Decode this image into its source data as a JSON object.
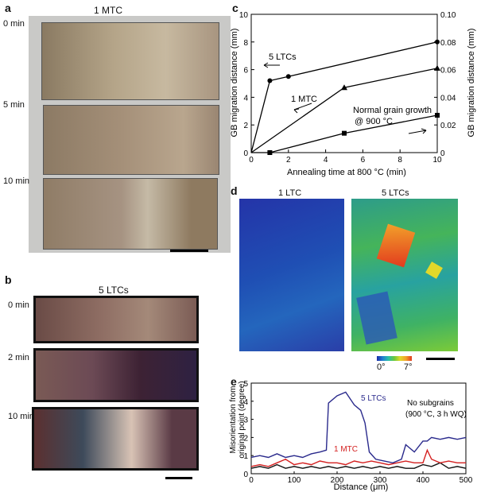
{
  "panel_a": {
    "letter": "a",
    "title": "1 MTC",
    "rows": [
      {
        "label": "0 min"
      },
      {
        "label": "5 min"
      },
      {
        "label": "10 min"
      }
    ]
  },
  "panel_b": {
    "letter": "b",
    "title": "5 LTCs",
    "rows": [
      {
        "label": "0 min"
      },
      {
        "label": "2 min"
      },
      {
        "label": "10 min"
      }
    ]
  },
  "panel_d": {
    "letter": "d",
    "left_title": "1 LTC",
    "right_title": "5 LTCs",
    "colorbar_min": "0°",
    "colorbar_max": "7°",
    "colorbar_colors": [
      "#1a2aa8",
      "#1f7fd0",
      "#27c0a8",
      "#6cc93a",
      "#e2d82a",
      "#f2a12a",
      "#e23a1e"
    ]
  },
  "chart_data": [
    {
      "panel": "c",
      "type": "line",
      "xlabel": "Annealing time at 800 °C (min)",
      "ylabel_left": "GB migration distance (mm)",
      "ylabel_right": "GB migration distance (mm)",
      "xlim": [
        0,
        10
      ],
      "ylim_left": [
        0,
        10
      ],
      "ylim_right": [
        0,
        0.1
      ],
      "xticks": [
        "0",
        "2",
        "4",
        "6",
        "8",
        "10"
      ],
      "yticks_left": [
        "0",
        "2",
        "4",
        "6",
        "8",
        "10"
      ],
      "yticks_right": [
        "0",
        "0.02",
        "0.04",
        "0.06",
        "0.08",
        "0.10"
      ],
      "series": [
        {
          "name": "5 LTCs",
          "marker": "circle",
          "axis": "left",
          "x": [
            0,
            1,
            2,
            10
          ],
          "y": [
            0,
            5.2,
            5.5,
            8.0
          ]
        },
        {
          "name": "1 MTC",
          "marker": "triangle",
          "axis": "left",
          "x": [
            0,
            5,
            10
          ],
          "y": [
            0,
            4.7,
            6.1
          ]
        },
        {
          "name": "Normal grain growth @ 900 °C",
          "marker": "square",
          "axis": "right",
          "x": [
            0,
            1,
            5,
            10
          ],
          "y": [
            0,
            0.0,
            0.014,
            0.027
          ]
        }
      ],
      "annotations": [
        "5 LTCs",
        "1 MTC",
        "Normal grain growth",
        "@ 900 °C"
      ]
    },
    {
      "panel": "e",
      "type": "line",
      "xlabel": "Distance (μm)",
      "ylabel": "Misorientation from original point (degree)",
      "ylabel_lines": [
        "Misorientation from",
        "original point (degree)"
      ],
      "xlim": [
        0,
        500
      ],
      "ylim": [
        0,
        5
      ],
      "xticks": [
        "0",
        "100",
        "200",
        "300",
        "400",
        "500"
      ],
      "yticks": [
        "0",
        "1",
        "2",
        "3",
        "4",
        "5"
      ],
      "series": [
        {
          "name": "5 LTCs",
          "color": "#2a2a8c",
          "x": [
            0,
            20,
            40,
            60,
            80,
            100,
            120,
            140,
            160,
            175,
            180,
            200,
            220,
            240,
            255,
            265,
            275,
            290,
            310,
            330,
            350,
            360,
            380,
            400,
            410,
            420,
            440,
            460,
            480,
            500
          ],
          "y": [
            0.9,
            1.0,
            0.9,
            1.1,
            0.9,
            1.0,
            0.9,
            1.1,
            1.2,
            1.3,
            3.9,
            4.3,
            4.5,
            3.8,
            3.5,
            2.8,
            1.2,
            0.8,
            0.7,
            0.6,
            0.8,
            1.6,
            1.2,
            1.8,
            1.8,
            2.0,
            1.9,
            2.0,
            1.9,
            2.0
          ]
        },
        {
          "name": "1 MTC",
          "color": "#d42020",
          "x": [
            0,
            20,
            40,
            60,
            80,
            100,
            120,
            140,
            160,
            180,
            200,
            220,
            240,
            260,
            280,
            300,
            320,
            340,
            360,
            380,
            400,
            410,
            420,
            440,
            460,
            480,
            500
          ],
          "y": [
            0.4,
            0.5,
            0.4,
            0.6,
            0.8,
            0.5,
            0.6,
            0.5,
            0.7,
            0.6,
            0.6,
            0.5,
            0.7,
            0.6,
            0.7,
            0.6,
            0.5,
            0.6,
            0.7,
            0.6,
            0.6,
            1.3,
            0.8,
            0.6,
            0.7,
            0.6,
            0.6
          ]
        },
        {
          "name": "No subgrains (900 °C, 3 h  WQ)",
          "color": "#111111",
          "x": [
            0,
            20,
            40,
            60,
            80,
            100,
            120,
            140,
            160,
            180,
            200,
            220,
            240,
            260,
            280,
            300,
            320,
            340,
            360,
            380,
            400,
            420,
            440,
            460,
            480,
            500
          ],
          "y": [
            0.3,
            0.4,
            0.3,
            0.5,
            0.3,
            0.4,
            0.3,
            0.4,
            0.3,
            0.4,
            0.3,
            0.4,
            0.3,
            0.4,
            0.3,
            0.4,
            0.3,
            0.4,
            0.3,
            0.3,
            0.5,
            0.4,
            0.6,
            0.3,
            0.4,
            0.3
          ]
        }
      ],
      "legend_texts": [
        "5 LTCs",
        "1 MTC",
        "No subgrains",
        "(900 °C, 3 h  WQ)"
      ]
    }
  ]
}
